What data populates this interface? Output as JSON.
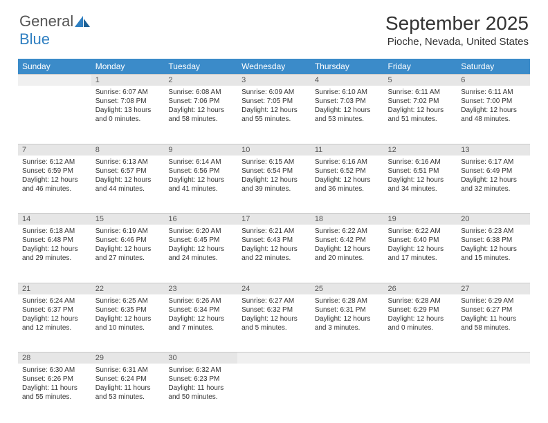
{
  "logo": {
    "text1": "General",
    "text2": "Blue"
  },
  "title": "September 2025",
  "location": "Pioche, Nevada, United States",
  "colors": {
    "header_bg": "#3b8bc9",
    "header_text": "#ffffff",
    "daynum_bg": "#e6e6e6",
    "text": "#333333"
  },
  "weekdays": [
    "Sunday",
    "Monday",
    "Tuesday",
    "Wednesday",
    "Thursday",
    "Friday",
    "Saturday"
  ],
  "weeks": [
    [
      null,
      {
        "n": "1",
        "sr": "6:07 AM",
        "ss": "7:08 PM",
        "dl": "13 hours and 0 minutes."
      },
      {
        "n": "2",
        "sr": "6:08 AM",
        "ss": "7:06 PM",
        "dl": "12 hours and 58 minutes."
      },
      {
        "n": "3",
        "sr": "6:09 AM",
        "ss": "7:05 PM",
        "dl": "12 hours and 55 minutes."
      },
      {
        "n": "4",
        "sr": "6:10 AM",
        "ss": "7:03 PM",
        "dl": "12 hours and 53 minutes."
      },
      {
        "n": "5",
        "sr": "6:11 AM",
        "ss": "7:02 PM",
        "dl": "12 hours and 51 minutes."
      },
      {
        "n": "6",
        "sr": "6:11 AM",
        "ss": "7:00 PM",
        "dl": "12 hours and 48 minutes."
      }
    ],
    [
      {
        "n": "7",
        "sr": "6:12 AM",
        "ss": "6:59 PM",
        "dl": "12 hours and 46 minutes."
      },
      {
        "n": "8",
        "sr": "6:13 AM",
        "ss": "6:57 PM",
        "dl": "12 hours and 44 minutes."
      },
      {
        "n": "9",
        "sr": "6:14 AM",
        "ss": "6:56 PM",
        "dl": "12 hours and 41 minutes."
      },
      {
        "n": "10",
        "sr": "6:15 AM",
        "ss": "6:54 PM",
        "dl": "12 hours and 39 minutes."
      },
      {
        "n": "11",
        "sr": "6:16 AM",
        "ss": "6:52 PM",
        "dl": "12 hours and 36 minutes."
      },
      {
        "n": "12",
        "sr": "6:16 AM",
        "ss": "6:51 PM",
        "dl": "12 hours and 34 minutes."
      },
      {
        "n": "13",
        "sr": "6:17 AM",
        "ss": "6:49 PM",
        "dl": "12 hours and 32 minutes."
      }
    ],
    [
      {
        "n": "14",
        "sr": "6:18 AM",
        "ss": "6:48 PM",
        "dl": "12 hours and 29 minutes."
      },
      {
        "n": "15",
        "sr": "6:19 AM",
        "ss": "6:46 PM",
        "dl": "12 hours and 27 minutes."
      },
      {
        "n": "16",
        "sr": "6:20 AM",
        "ss": "6:45 PM",
        "dl": "12 hours and 24 minutes."
      },
      {
        "n": "17",
        "sr": "6:21 AM",
        "ss": "6:43 PM",
        "dl": "12 hours and 22 minutes."
      },
      {
        "n": "18",
        "sr": "6:22 AM",
        "ss": "6:42 PM",
        "dl": "12 hours and 20 minutes."
      },
      {
        "n": "19",
        "sr": "6:22 AM",
        "ss": "6:40 PM",
        "dl": "12 hours and 17 minutes."
      },
      {
        "n": "20",
        "sr": "6:23 AM",
        "ss": "6:38 PM",
        "dl": "12 hours and 15 minutes."
      }
    ],
    [
      {
        "n": "21",
        "sr": "6:24 AM",
        "ss": "6:37 PM",
        "dl": "12 hours and 12 minutes."
      },
      {
        "n": "22",
        "sr": "6:25 AM",
        "ss": "6:35 PM",
        "dl": "12 hours and 10 minutes."
      },
      {
        "n": "23",
        "sr": "6:26 AM",
        "ss": "6:34 PM",
        "dl": "12 hours and 7 minutes."
      },
      {
        "n": "24",
        "sr": "6:27 AM",
        "ss": "6:32 PM",
        "dl": "12 hours and 5 minutes."
      },
      {
        "n": "25",
        "sr": "6:28 AM",
        "ss": "6:31 PM",
        "dl": "12 hours and 3 minutes."
      },
      {
        "n": "26",
        "sr": "6:28 AM",
        "ss": "6:29 PM",
        "dl": "12 hours and 0 minutes."
      },
      {
        "n": "27",
        "sr": "6:29 AM",
        "ss": "6:27 PM",
        "dl": "11 hours and 58 minutes."
      }
    ],
    [
      {
        "n": "28",
        "sr": "6:30 AM",
        "ss": "6:26 PM",
        "dl": "11 hours and 55 minutes."
      },
      {
        "n": "29",
        "sr": "6:31 AM",
        "ss": "6:24 PM",
        "dl": "11 hours and 53 minutes."
      },
      {
        "n": "30",
        "sr": "6:32 AM",
        "ss": "6:23 PM",
        "dl": "11 hours and 50 minutes."
      },
      null,
      null,
      null,
      null
    ]
  ],
  "labels": {
    "sunrise": "Sunrise:",
    "sunset": "Sunset:",
    "daylight": "Daylight:"
  }
}
